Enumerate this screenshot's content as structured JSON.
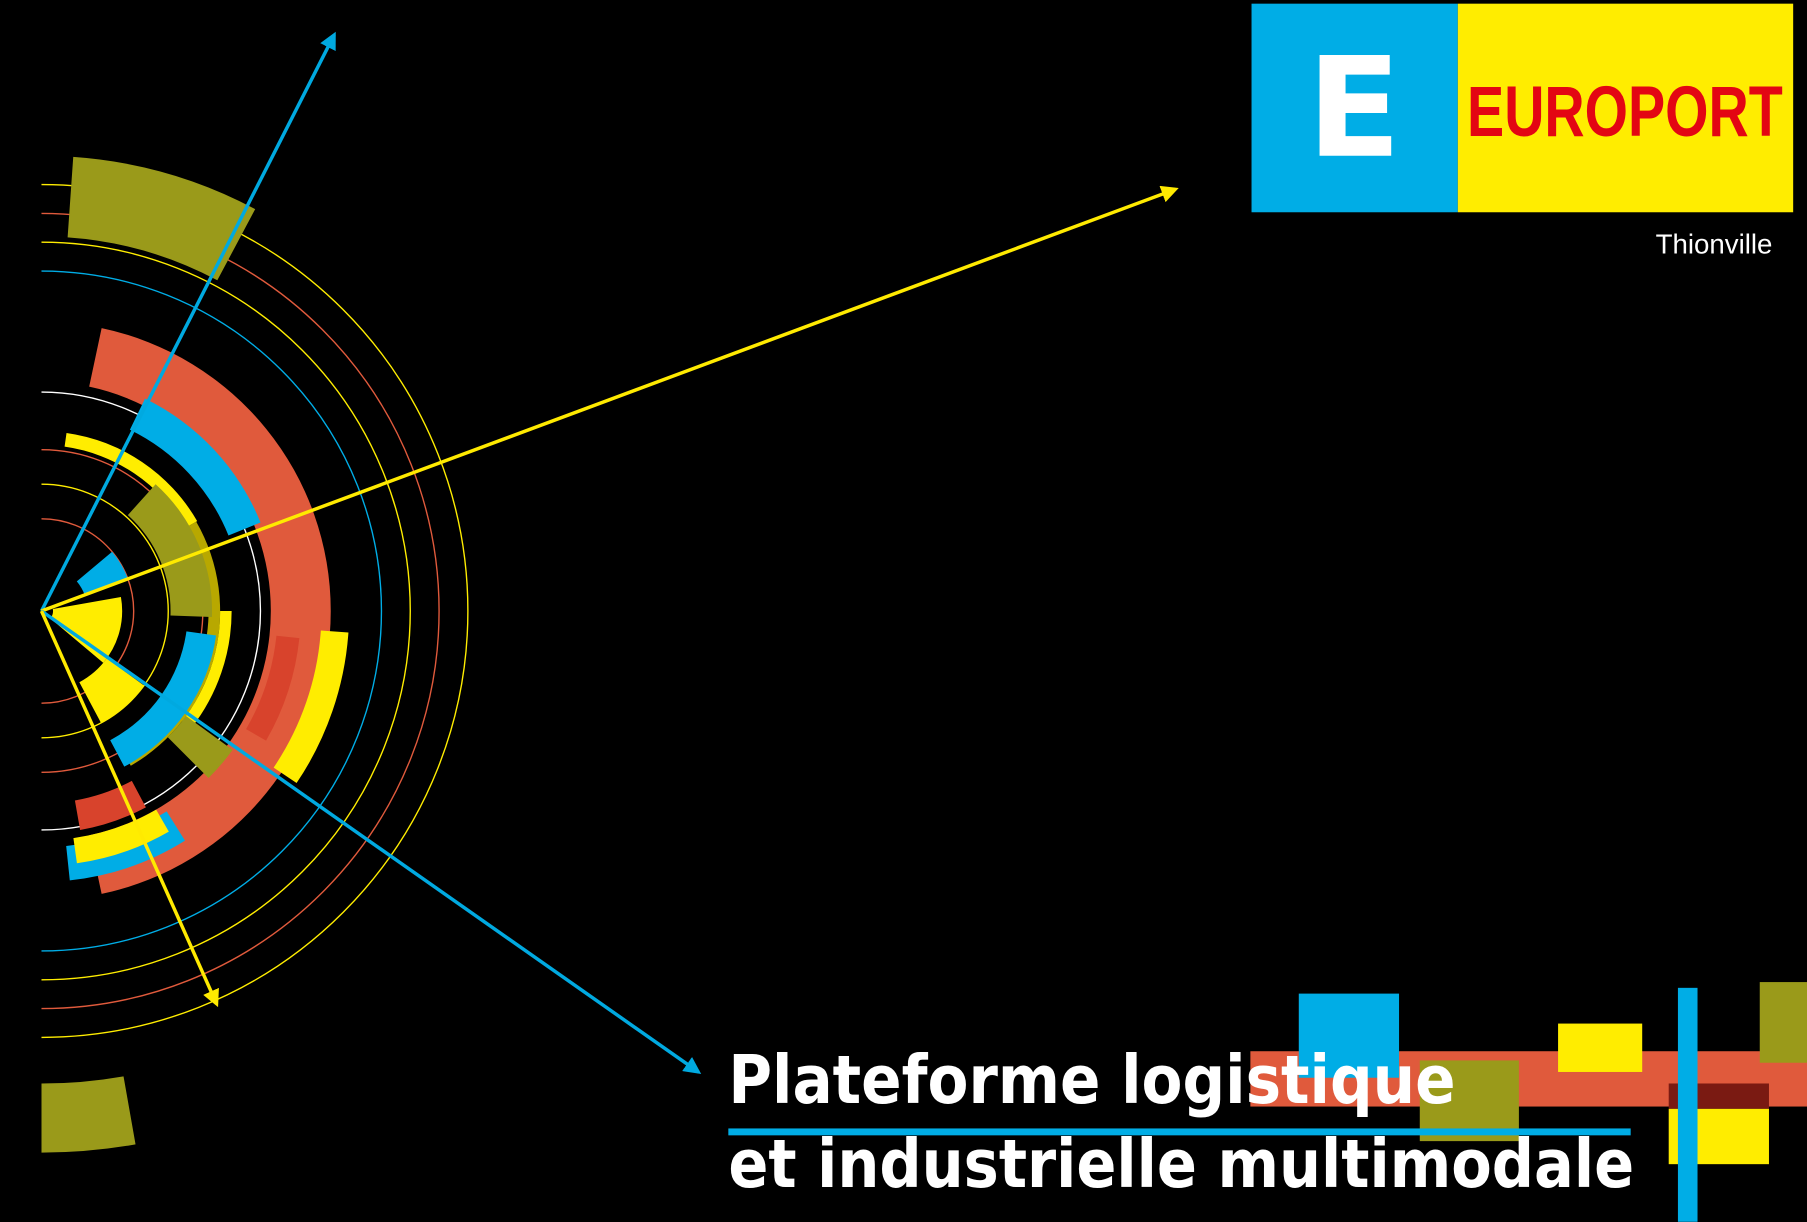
{
  "logo": {
    "letter": "E",
    "name": "EUROPORT"
  },
  "location": "Thionville",
  "headline": {
    "line1": "Plateforme logistique",
    "line2": "et industrielle multimodale"
  }
}
